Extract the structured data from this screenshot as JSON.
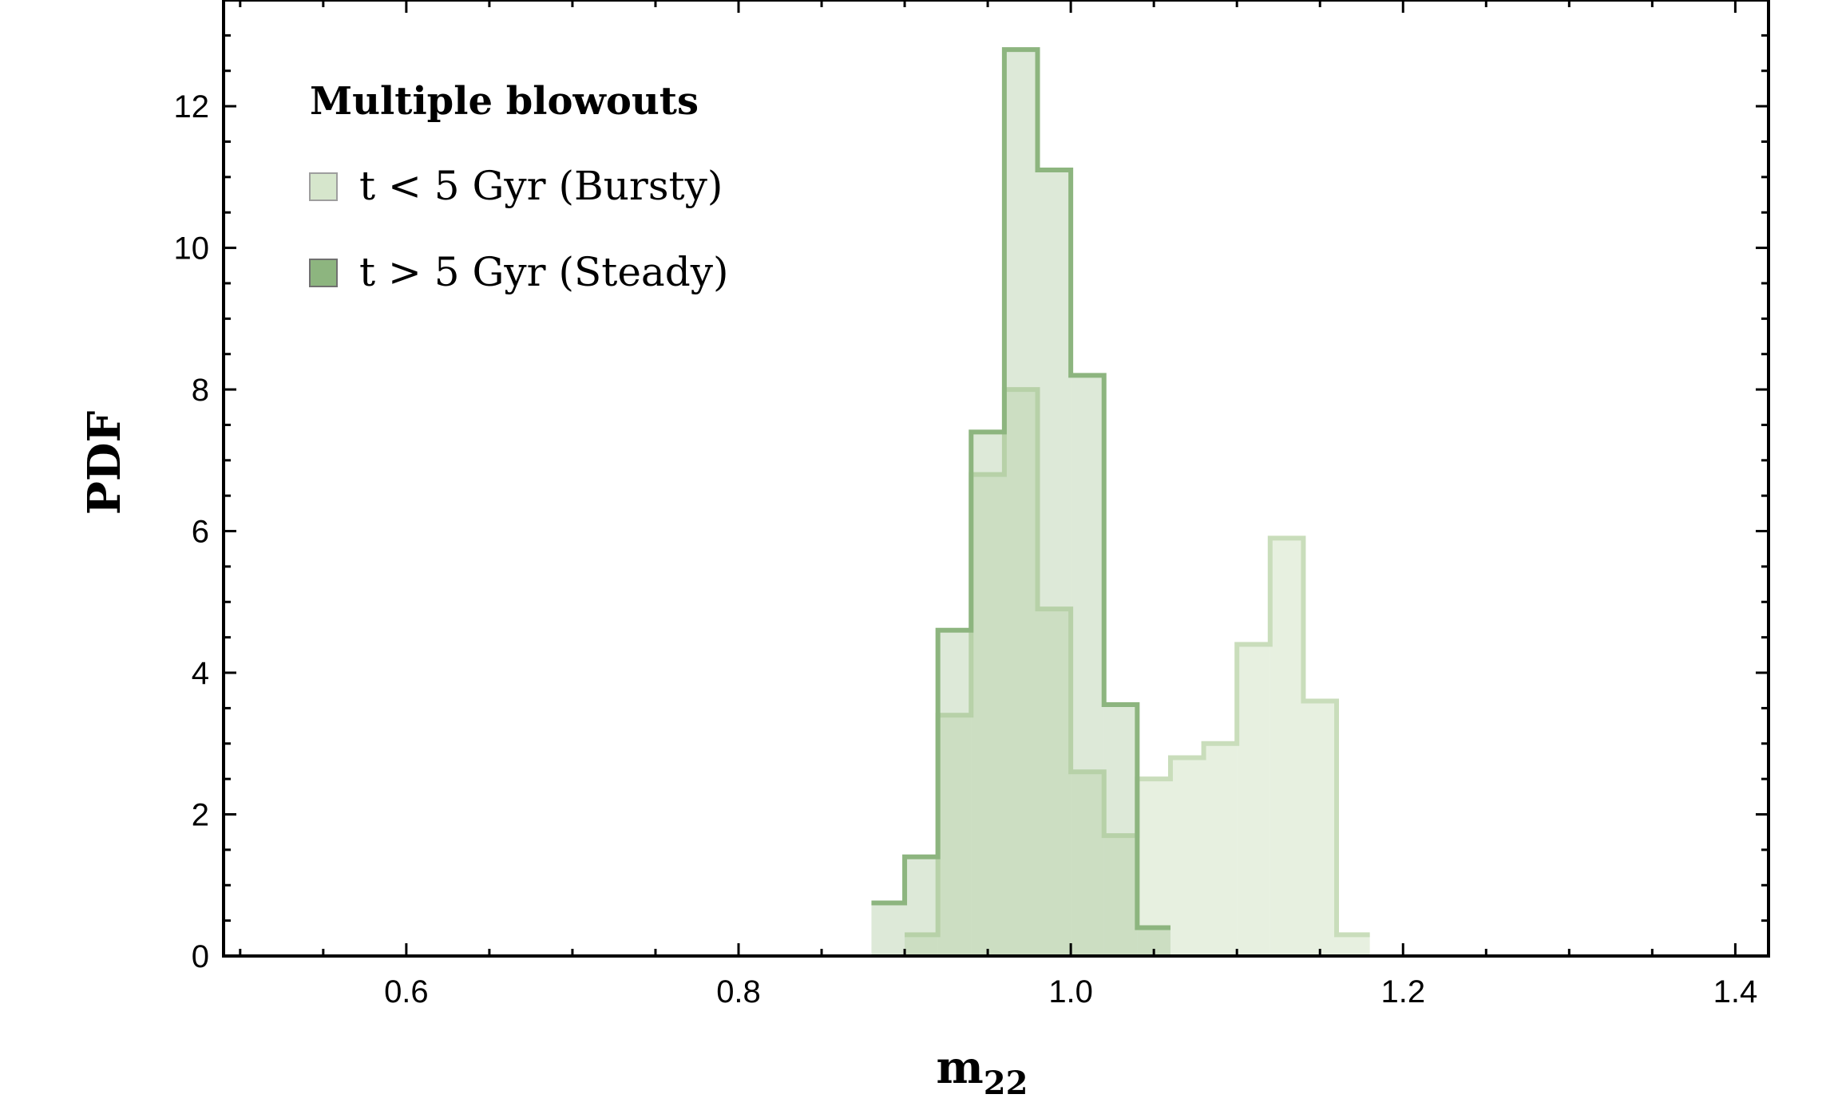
{
  "chart_data": {
    "type": "bar",
    "histogram": true,
    "xlabel": "m",
    "xlabel_subscript": "22",
    "ylabel": "PDF",
    "xlim": [
      0.49,
      1.42
    ],
    "ylim": [
      0,
      13.5
    ],
    "xticks": [
      0.6,
      0.8,
      1.0,
      1.2,
      1.4
    ],
    "xtick_labels": [
      "0.6",
      "0.8",
      "1.0",
      "1.2",
      "1.4"
    ],
    "yticks": [
      0,
      2,
      4,
      6,
      8,
      10,
      12
    ],
    "ytick_labels": [
      "0",
      "2",
      "4",
      "6",
      "8",
      "10",
      "12"
    ],
    "legend": {
      "title": "Multiple blowouts",
      "placement": "top-left",
      "entries": [
        "t < 5 Gyr (Bursty)",
        "t > 5 Gyr (Steady)"
      ]
    },
    "series": [
      {
        "name": "t < 5 Gyr (Bursty)",
        "color": "#c9ddbb",
        "fill_opacity": 0.45,
        "bin_edges": [
          0.9,
          0.92,
          0.94,
          0.96,
          0.98,
          1.0,
          1.02,
          1.04,
          1.06,
          1.08,
          1.1,
          1.12,
          1.14,
          1.16,
          1.18
        ],
        "values": [
          0.3,
          3.4,
          6.8,
          8.0,
          4.9,
          2.6,
          1.7,
          2.5,
          2.8,
          3.0,
          4.4,
          5.9,
          3.6,
          0.3
        ]
      },
      {
        "name": "t > 5 Gyr (Steady)",
        "color": "#8db57f",
        "fill_opacity": 0.3,
        "bin_edges": [
          0.88,
          0.9,
          0.92,
          0.94,
          0.96,
          0.98,
          1.0,
          1.02,
          1.04,
          1.06
        ],
        "values": [
          0.75,
          1.4,
          4.6,
          7.4,
          12.8,
          11.1,
          8.2,
          3.55,
          0.4
        ]
      }
    ]
  }
}
